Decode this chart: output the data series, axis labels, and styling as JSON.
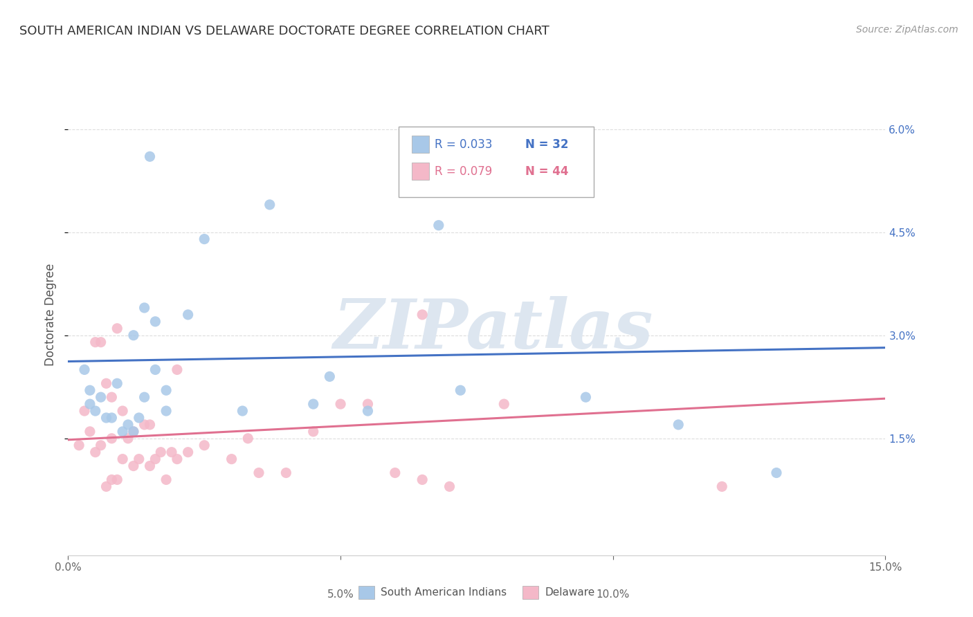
{
  "title": "SOUTH AMERICAN INDIAN VS DELAWARE DOCTORATE DEGREE CORRELATION CHART",
  "source": "Source: ZipAtlas.com",
  "ylabel": "Doctorate Degree",
  "xlim": [
    0.0,
    0.15
  ],
  "ylim": [
    -0.002,
    0.068
  ],
  "background_color": "#ffffff",
  "grid_color": "#dddddd",
  "blue_color": "#a8c8e8",
  "pink_color": "#f4b8c8",
  "blue_line_color": "#4472c4",
  "pink_line_color": "#e07090",
  "watermark_text": "ZIPatlas",
  "watermark_color": "#dde6f0",
  "blue_line_y0": 0.0262,
  "blue_line_y1": 0.0282,
  "pink_line_y0": 0.0148,
  "pink_line_y1": 0.0208,
  "blue_x": [
    0.003,
    0.004,
    0.004,
    0.005,
    0.006,
    0.007,
    0.008,
    0.009,
    0.01,
    0.011,
    0.012,
    0.013,
    0.014,
    0.016,
    0.018,
    0.012,
    0.014,
    0.016,
    0.018,
    0.022,
    0.025,
    0.037,
    0.045,
    0.055,
    0.068,
    0.072,
    0.095,
    0.112,
    0.13,
    0.015,
    0.032,
    0.048
  ],
  "blue_y": [
    0.025,
    0.022,
    0.02,
    0.019,
    0.021,
    0.018,
    0.018,
    0.023,
    0.016,
    0.017,
    0.016,
    0.018,
    0.021,
    0.025,
    0.019,
    0.03,
    0.034,
    0.032,
    0.022,
    0.033,
    0.044,
    0.049,
    0.02,
    0.019,
    0.046,
    0.022,
    0.021,
    0.017,
    0.01,
    0.056,
    0.019,
    0.024
  ],
  "pink_x": [
    0.002,
    0.003,
    0.004,
    0.005,
    0.006,
    0.007,
    0.008,
    0.008,
    0.009,
    0.01,
    0.01,
    0.011,
    0.012,
    0.012,
    0.013,
    0.014,
    0.015,
    0.015,
    0.016,
    0.017,
    0.018,
    0.019,
    0.02,
    0.02,
    0.022,
    0.025,
    0.03,
    0.033,
    0.035,
    0.04,
    0.045,
    0.05,
    0.055,
    0.06,
    0.065,
    0.07,
    0.08,
    0.12,
    0.005,
    0.006,
    0.007,
    0.008,
    0.009,
    0.065
  ],
  "pink_y": [
    0.014,
    0.019,
    0.016,
    0.013,
    0.014,
    0.008,
    0.015,
    0.009,
    0.009,
    0.012,
    0.019,
    0.015,
    0.011,
    0.016,
    0.012,
    0.017,
    0.011,
    0.017,
    0.012,
    0.013,
    0.009,
    0.013,
    0.012,
    0.025,
    0.013,
    0.014,
    0.012,
    0.015,
    0.01,
    0.01,
    0.016,
    0.02,
    0.02,
    0.01,
    0.009,
    0.008,
    0.02,
    0.008,
    0.029,
    0.029,
    0.023,
    0.021,
    0.031,
    0.033
  ]
}
